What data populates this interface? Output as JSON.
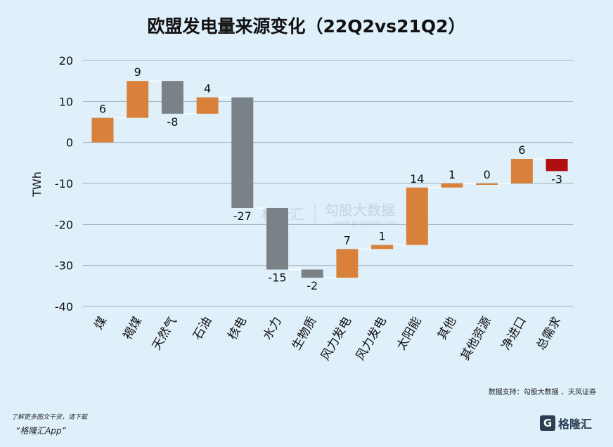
{
  "header": {
    "title": "欧盟发电量来源变化（22Q2vs21Q2）"
  },
  "chart_data": {
    "type": "waterfall",
    "ylabel": "TWh",
    "xlabel": "",
    "ylim": [
      -40,
      20
    ],
    "yticks": [
      20,
      10,
      0,
      -10,
      -20,
      -30,
      -40
    ],
    "grid": true,
    "legend": "none",
    "colors": {
      "increase": "#d9813a",
      "decrease": "#7a8287",
      "total": "#b00f0f"
    },
    "bars": [
      {
        "category": "煤",
        "start": 0,
        "end": 6,
        "label": "6",
        "kind": "increase"
      },
      {
        "category": "褐煤",
        "start": 6,
        "end": 15,
        "label": "9",
        "kind": "increase"
      },
      {
        "category": "天然气",
        "start": 15,
        "end": 7,
        "label": "-8",
        "kind": "decrease"
      },
      {
        "category": "石油",
        "start": 7,
        "end": 11,
        "label": "4",
        "kind": "increase"
      },
      {
        "category": "核电",
        "start": 11,
        "end": -16,
        "label": "-27",
        "kind": "decrease"
      },
      {
        "category": "水力",
        "start": -16,
        "end": -31,
        "label": "-15",
        "kind": "decrease"
      },
      {
        "category": "生物质",
        "start": -31,
        "end": -33,
        "label": "-2",
        "kind": "decrease"
      },
      {
        "category": "风力发电",
        "start": -33,
        "end": -26,
        "label": "7",
        "kind": "increase"
      },
      {
        "category": "风力发电",
        "start": -26,
        "end": -25,
        "label": "1",
        "kind": "increase"
      },
      {
        "category": "太阳能",
        "start": -25,
        "end": -11,
        "label": "14",
        "kind": "increase"
      },
      {
        "category": "其他",
        "start": -11,
        "end": -10,
        "label": "1",
        "kind": "increase"
      },
      {
        "category": "其他资源",
        "start": -10,
        "end": -10,
        "label": "0",
        "kind": "increase"
      },
      {
        "category": "净进口",
        "start": -10,
        "end": -4,
        "label": "6",
        "kind": "increase"
      },
      {
        "category": "总需求",
        "start": -4,
        "end": -7,
        "label": "-3",
        "kind": "total"
      }
    ]
  },
  "watermark": {
    "brand": "格隆汇",
    "partner": "勾股大数据",
    "partner_url": "www.gogudata.com"
  },
  "source": "数据支持：勾股大数据 、天风证券",
  "footer": {
    "note": "了解更多图文干货，请下载",
    "app": "“格隆汇App”",
    "brand_mark": "G",
    "brand": "格隆汇"
  }
}
